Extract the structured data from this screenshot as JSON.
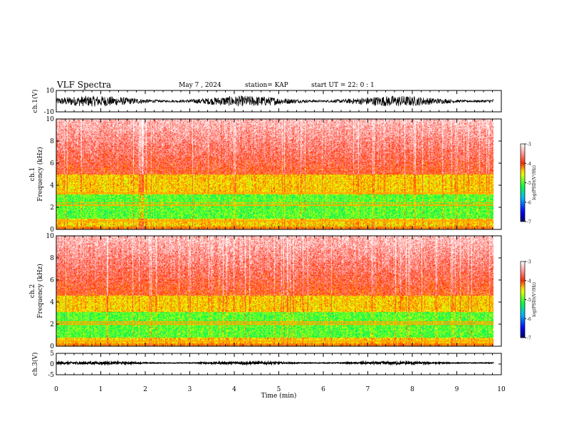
{
  "header": {
    "title": "VLF Spectra",
    "date": "May 7 , 2024",
    "station": "station= KAP",
    "start": "start UT = 22: 0 : 1"
  },
  "chart_data": [
    {
      "type": "line",
      "id": "ch1-waveform",
      "ylabel": "ch.1(V)",
      "ylim": [
        -10,
        10
      ],
      "yticks": [
        -10,
        10
      ],
      "xlim": [
        0,
        10
      ],
      "x_end": 9.83,
      "description_values": {
        "mean": 0,
        "amplitude": 5
      }
    },
    {
      "type": "heatmap",
      "id": "ch1-spectrogram",
      "ylabel_top": "ch.1",
      "ylabel": "Frequency (kHz)",
      "ylim": [
        0,
        10
      ],
      "yticks": [
        0,
        2,
        4,
        6,
        8,
        10
      ],
      "xlim": [
        0,
        10
      ],
      "x_end": 9.83,
      "green_band_khz": [
        1.0,
        3.2
      ],
      "yellow_band_khz": [
        0.4,
        5.0
      ],
      "line_khz": [
        2.25,
        2.45,
        3.3,
        0.8
      ],
      "colorbar": {
        "label": "log(PSD)(V²/Hz)",
        "range": [
          -7,
          -3
        ],
        "ticks": [
          -7,
          -6,
          -5,
          -4,
          -3
        ]
      }
    },
    {
      "type": "heatmap",
      "id": "ch2-spectrogram",
      "ylabel_top": "ch.2",
      "ylabel": "Frequency (kHz)",
      "ylim": [
        0,
        10
      ],
      "yticks": [
        0,
        2,
        4,
        6,
        8,
        10
      ],
      "xlim": [
        0,
        10
      ],
      "x_end": 9.83,
      "green_band_khz": [
        0.8,
        3.1
      ],
      "yellow_band_khz": [
        0.3,
        4.6
      ],
      "line_khz": [
        2.05,
        2.2,
        0.5
      ],
      "colorbar": {
        "label": "log(PSD)(V²/Hz)",
        "range": [
          -7,
          -3
        ],
        "ticks": [
          -7,
          -6,
          -5,
          -4,
          -3
        ]
      }
    },
    {
      "type": "line",
      "id": "ch3-waveform",
      "ylabel": "ch.3(V)",
      "ylim": [
        -5,
        5
      ],
      "yticks": [
        -5,
        0,
        5
      ],
      "xlim": [
        0,
        10
      ],
      "x_end": 9.83,
      "description_values": {
        "mean": 0.5,
        "amplitude": 0.6
      }
    }
  ],
  "xaxis": {
    "label": "Time (min)",
    "ticks": [
      0,
      1,
      2,
      3,
      4,
      5,
      6,
      7,
      8,
      9,
      10
    ]
  },
  "colors": {
    "scale": [
      "#000066",
      "#0000ff",
      "#00b0ff",
      "#00ff40",
      "#ffff00",
      "#ff2000",
      "#ffffff"
    ]
  }
}
